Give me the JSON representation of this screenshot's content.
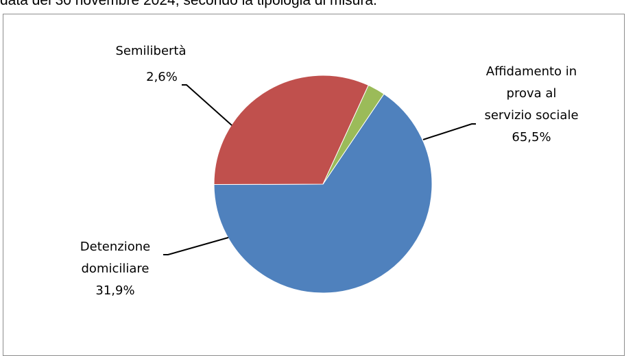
{
  "caption": "data del 30 novembre 2024, secondo la tipologia di misura.",
  "chart_data": {
    "type": "pie",
    "title": "",
    "slices": [
      {
        "label_lines": [
          "Affidamento in",
          "prova al",
          "servizio sociale"
        ],
        "value_text": "65,5%",
        "value": 65.5,
        "color": "#4F81BD"
      },
      {
        "label_lines": [
          "Detenzione",
          "domiciliare"
        ],
        "value_text": "31,9%",
        "value": 31.9,
        "color": "#C0504D"
      },
      {
        "label_lines": [
          "Semilibertà"
        ],
        "value_text": "2,6%",
        "value": 2.6,
        "color": "#9BBB59"
      }
    ],
    "start_angle_deg": 56
  }
}
